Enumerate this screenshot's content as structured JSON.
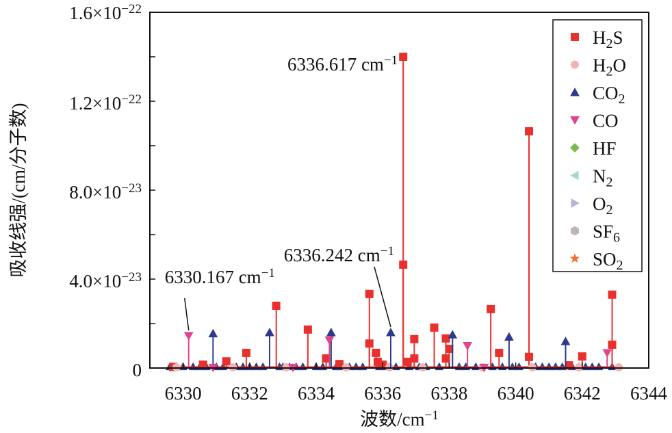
{
  "chart_data": {
    "type": "scatter",
    "subtype": "stem",
    "xlabel": {
      "text": "波数/cm",
      "sup": "−1"
    },
    "ylabel": "吸收线强/(cm/分子数)",
    "xlim": [
      6329,
      6344
    ],
    "ylim": [
      0,
      1.6e-22
    ],
    "xticks": [
      6330,
      6332,
      6334,
      6336,
      6338,
      6340,
      6342,
      6344
    ],
    "xtick_labels": [
      "6330",
      "6332",
      "6334",
      "6336",
      "6338",
      "6340",
      "6342",
      "6344"
    ],
    "yticks": [
      0,
      4e-23,
      8e-23,
      1.2e-22,
      1.6e-22
    ],
    "ytick_labels": [
      {
        "base": "0",
        "exp": ""
      },
      {
        "base": "4.0×10",
        "exp": "−23"
      },
      {
        "base": "8.0×10",
        "exp": "−23"
      },
      {
        "base": "1.2×10",
        "exp": "−22"
      },
      {
        "base": "1.6×10",
        "exp": "−22"
      }
    ],
    "grid": false,
    "legend_position": "top-right",
    "series": [
      {
        "name": "H2S",
        "marker": "square",
        "color": "#e8302c",
        "points": [
          [
            6336.617,
            1.4e-22
          ],
          [
            6336.617,
            4.65e-23
          ],
          [
            6340.4,
            1.065e-22
          ],
          [
            6340.4,
            5e-24
          ],
          [
            6342.9,
            3.3e-23
          ],
          [
            6342.9,
            1.05e-23
          ],
          [
            6335.6,
            3.33e-23
          ],
          [
            6335.6,
            1.1e-23
          ],
          [
            6332.8,
            2.8e-23
          ],
          [
            6333.75,
            1.73e-23
          ],
          [
            6339.25,
            2.65e-23
          ],
          [
            6337.55,
            1.82e-23
          ],
          [
            6336.95,
            1.3e-23
          ],
          [
            6336.95,
            4.3e-24
          ],
          [
            6337.9,
            1.33e-23
          ],
          [
            6338.0,
            8.6e-24
          ],
          [
            6337.9,
            4.3e-24
          ],
          [
            6339.5,
            6.8e-24
          ],
          [
            6342.0,
            5.2e-24
          ],
          [
            6331.9,
            6.8e-24
          ],
          [
            6331.3,
            3e-24
          ],
          [
            6335.8,
            6.8e-24
          ],
          [
            6335.85,
            2.8e-24
          ],
          [
            6334.3,
            4.3e-24
          ],
          [
            6334.7,
            1.8e-24
          ],
          [
            6336.75,
            2.8e-24
          ],
          [
            6330.6,
            1.5e-24
          ],
          [
            6336.0,
            1.5e-24
          ],
          [
            6341.6,
            1.2e-24
          ],
          [
            6329.7,
            5e-25
          ]
        ]
      },
      {
        "name": "H2O",
        "marker": "circle",
        "color": "#f4b3b3",
        "points": [
          [
            6329.8,
            3e-25
          ],
          [
            6331.5,
            3e-25
          ],
          [
            6333.1,
            3e-25
          ],
          [
            6334.9,
            3e-25
          ],
          [
            6336.2,
            3e-25
          ],
          [
            6337.2,
            3e-25
          ],
          [
            6339.0,
            3e-25
          ],
          [
            6340.5,
            3e-25
          ],
          [
            6341.9,
            3e-25
          ],
          [
            6343.1,
            3e-25
          ]
        ]
      },
      {
        "name": "CO2",
        "marker": "triangle-up",
        "color": "#2e3a8c",
        "points": [
          [
            6330.9,
            1.55e-23
          ],
          [
            6332.6,
            1.6e-23
          ],
          [
            6334.45,
            1.6e-23
          ],
          [
            6336.242,
            1.6e-23
          ],
          [
            6338.1,
            1.5e-23
          ],
          [
            6339.8,
            1.4e-23
          ],
          [
            6341.5,
            1.2e-23
          ]
        ]
      },
      {
        "name": "CO",
        "marker": "triangle-down",
        "color": "#e0448f",
        "points": [
          [
            6330.167,
            1.45e-23
          ],
          [
            6334.4,
            1.25e-23
          ],
          [
            6338.55,
            1e-23
          ],
          [
            6342.75,
            6.8e-24
          ],
          [
            6330.9,
            2e-25
          ],
          [
            6333.3,
            2e-25
          ],
          [
            6339.05,
            2e-25
          ]
        ]
      },
      {
        "name": "HF",
        "marker": "diamond",
        "color": "#7cb84a",
        "points": []
      },
      {
        "name": "N2",
        "marker": "triangle-left",
        "color": "#a8d8d6",
        "points": []
      },
      {
        "name": "O2",
        "marker": "triangle-right",
        "color": "#b4b4dc",
        "points": []
      },
      {
        "name": "SF6",
        "marker": "hexagon",
        "color": "#c0b4b4",
        "points": []
      },
      {
        "name": "SO2",
        "marker": "star",
        "color": "#f07030",
        "points": []
      }
    ],
    "baseline_co2_x": [
      6329.6,
      6329.8,
      6330.0,
      6330.3,
      6330.5,
      6330.7,
      6331.0,
      6331.2,
      6331.6,
      6331.8,
      6332.0,
      6332.2,
      6332.4,
      6332.9,
      6333.0,
      6333.2,
      6333.4,
      6333.6,
      6334.0,
      6334.2,
      6334.6,
      6334.8,
      6335.0,
      6335.2,
      6335.4,
      6335.9,
      6336.1,
      6336.4,
      6336.8,
      6337.1,
      6337.3,
      6337.7,
      6338.3,
      6338.5,
      6338.8,
      6339.3,
      6339.6,
      6339.9,
      6340.1,
      6340.6,
      6340.8,
      6341.0,
      6341.2,
      6341.4,
      6341.7,
      6341.9,
      6342.1,
      6342.3,
      6342.5,
      6342.9
    ],
    "baseline_co2_y": 1.5e-24,
    "annotations": [
      {
        "text": "6336.617 cm",
        "sup": "−1",
        "x": 6336.617,
        "y": 1.4e-22,
        "arrow": false
      },
      {
        "text": "6336.242 cm",
        "sup": "−1",
        "x": 6336.242,
        "y": 1.6e-23,
        "arrow": true
      },
      {
        "text": "6330.167 cm",
        "sup": "−1",
        "x": 6330.167,
        "y": 1.45e-23,
        "arrow": true
      }
    ]
  }
}
